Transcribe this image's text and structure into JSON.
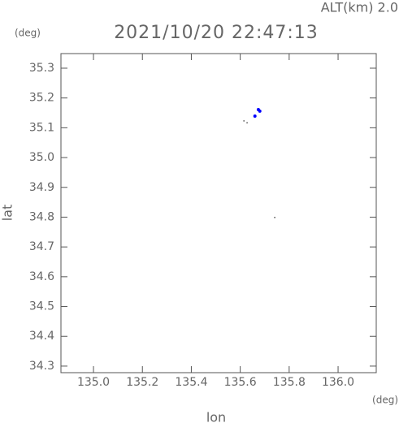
{
  "chart_data": {
    "type": "scatter",
    "title": "2021/10/20 22:47:13",
    "annotation": "ALT(km) 2.0",
    "x_unit": "(deg)",
    "y_unit": "(deg)",
    "xlabel": "lon",
    "ylabel": "lat",
    "xlim": [
      134.867,
      136.156
    ],
    "ylim": [
      34.278,
      35.349
    ],
    "xticks": [
      {
        "value": 135,
        "label": "135.0"
      },
      135.2,
      135.4,
      135.6,
      135.8,
      {
        "value": 136,
        "label": "136.0"
      }
    ],
    "yticks": [
      34.3,
      34.4,
      34.5,
      34.6,
      34.7,
      34.8,
      34.9,
      {
        "value": 35,
        "label": "35.0"
      },
      35.1,
      35.2,
      35.3
    ],
    "series": [
      {
        "color": "#0000ff",
        "x": [
          135.674,
          135.68,
          135.66
        ],
        "y": [
          35.161,
          35.156,
          35.139
        ]
      },
      {
        "color": "#333333",
        "x": [
          135.615,
          135.628,
          135.741
        ],
        "y": [
          35.123,
          35.117,
          34.799
        ]
      }
    ]
  }
}
